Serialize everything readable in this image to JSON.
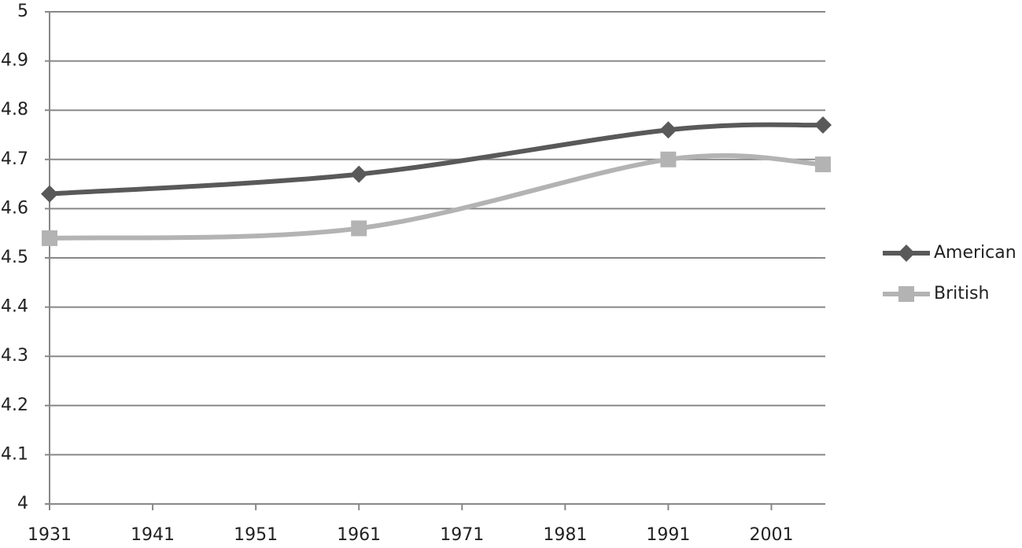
{
  "chart_data": {
    "type": "line",
    "x": [
      1931,
      1961,
      1991,
      2006
    ],
    "series": [
      {
        "name": "American",
        "color": "#595959",
        "marker": "diamond",
        "values": [
          4.63,
          4.67,
          4.76,
          4.77
        ]
      },
      {
        "name": "British",
        "color": "#b3b3b3",
        "marker": "square",
        "values": [
          4.54,
          4.56,
          4.7,
          4.69
        ]
      }
    ],
    "xlim": [
      1931,
      2006
    ],
    "xticks": [
      1931,
      1941,
      1951,
      1961,
      1971,
      1981,
      1991,
      2001
    ],
    "ylim": [
      4,
      5
    ],
    "yticks": [
      4,
      4.1,
      4.2,
      4.3,
      4.4,
      4.5,
      4.6,
      4.7,
      4.8,
      4.9,
      5
    ],
    "grid": true,
    "smooth": true,
    "legend": "right"
  }
}
